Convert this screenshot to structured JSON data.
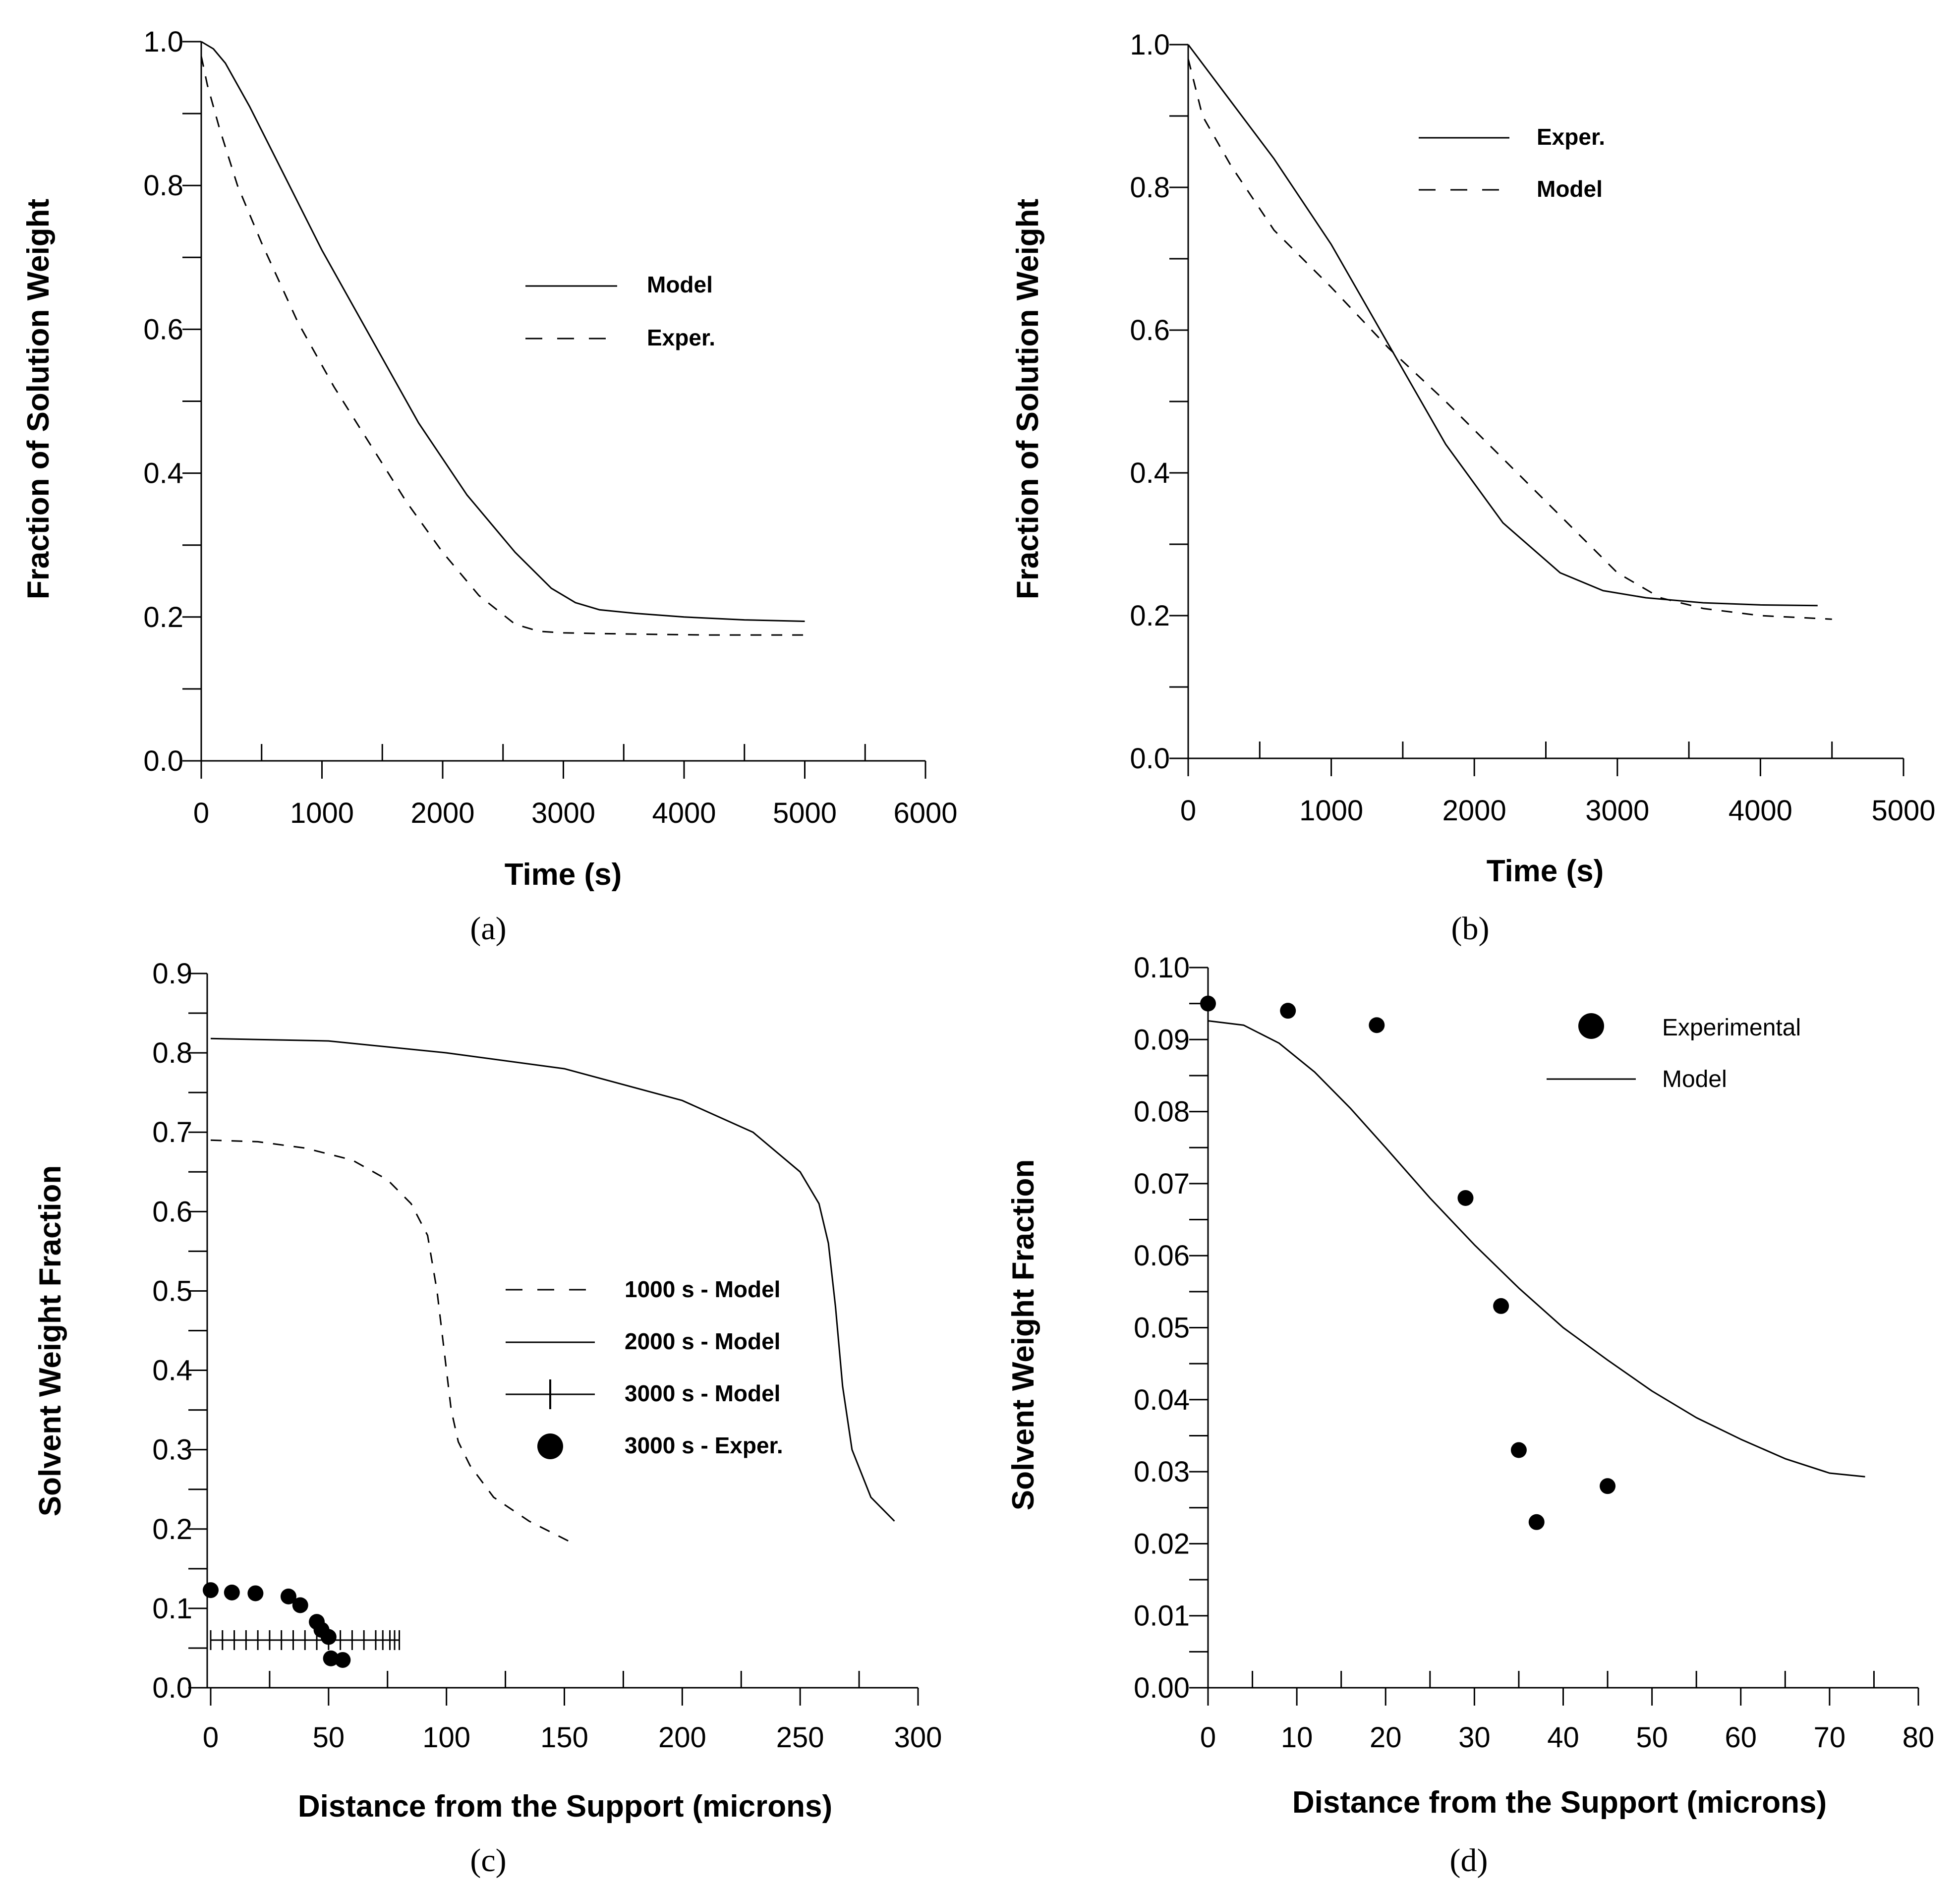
{
  "chart_data": [
    {
      "id": "a",
      "type": "line",
      "panel_label": "(a)",
      "xlabel": "Time (s)",
      "ylabel": "Fraction of Solution Weight",
      "xlim": [
        0,
        6000
      ],
      "ylim": [
        0,
        1
      ],
      "xticks": [
        "0",
        "1000",
        "2000",
        "3000",
        "4000",
        "5000",
        "6000"
      ],
      "yticks": [
        "0.0",
        "0.2",
        "0.4",
        "0.6",
        "0.8",
        "1.0"
      ],
      "legend": [
        {
          "label": "Model",
          "style": "solid"
        },
        {
          "label": "Exper.",
          "style": "dashed"
        }
      ],
      "series": [
        {
          "name": "Model",
          "style": "solid",
          "x": [
            0,
            100,
            200,
            400,
            700,
            1000,
            1400,
            1800,
            2200,
            2600,
            2900,
            3100,
            3300,
            3600,
            4000,
            4500,
            5000
          ],
          "y": [
            1.0,
            0.99,
            0.97,
            0.91,
            0.81,
            0.71,
            0.59,
            0.47,
            0.37,
            0.29,
            0.24,
            0.22,
            0.21,
            0.205,
            0.2,
            0.196,
            0.194
          ]
        },
        {
          "name": "Exper.",
          "style": "dashed",
          "x": [
            0,
            50,
            150,
            300,
            500,
            800,
            1100,
            1400,
            1700,
            2000,
            2300,
            2600,
            2800,
            3000,
            3300,
            3700,
            4200,
            5000
          ],
          "y": [
            0.98,
            0.94,
            0.88,
            0.8,
            0.72,
            0.61,
            0.52,
            0.44,
            0.36,
            0.29,
            0.23,
            0.19,
            0.18,
            0.178,
            0.177,
            0.176,
            0.175,
            0.175
          ]
        }
      ]
    },
    {
      "id": "b",
      "type": "line",
      "panel_label": "(b)",
      "xlabel": "Time (s)",
      "ylabel": "Fraction of Solution Weight",
      "xlim": [
        0,
        5000
      ],
      "ylim": [
        0,
        1
      ],
      "xticks": [
        "0",
        "1000",
        "2000",
        "3000",
        "4000",
        "5000"
      ],
      "yticks": [
        "0.0",
        "0.2",
        "0.4",
        "0.6",
        "0.8",
        "1.0"
      ],
      "legend": [
        {
          "label": "Exper.",
          "style": "solid"
        },
        {
          "label": "Model",
          "style": "dashed"
        }
      ],
      "series": [
        {
          "name": "Exper.",
          "style": "solid",
          "x": [
            0,
            300,
            600,
            1000,
            1400,
            1800,
            2200,
            2600,
            2900,
            3200,
            3600,
            4000,
            4400
          ],
          "y": [
            1.0,
            0.92,
            0.84,
            0.72,
            0.58,
            0.44,
            0.33,
            0.26,
            0.235,
            0.225,
            0.218,
            0.215,
            0.214
          ]
        },
        {
          "name": "Model",
          "style": "dashed",
          "x": [
            0,
            100,
            300,
            600,
            1000,
            1400,
            1800,
            2200,
            2600,
            3000,
            3300,
            3600,
            4000,
            4500
          ],
          "y": [
            0.98,
            0.9,
            0.83,
            0.74,
            0.66,
            0.575,
            0.5,
            0.42,
            0.34,
            0.26,
            0.225,
            0.21,
            0.2,
            0.195
          ]
        }
      ]
    },
    {
      "id": "c",
      "type": "line",
      "panel_label": "(c)",
      "xlabel": "Distance from the Support (microns)",
      "ylabel": "Solvent Weight Fraction",
      "xlim": [
        0,
        300
      ],
      "ylim": [
        0,
        0.9
      ],
      "xticks": [
        "0",
        "50",
        "100",
        "150",
        "200",
        "250",
        "300"
      ],
      "yticks": [
        "0.0",
        "0.1",
        "0.2",
        "0.3",
        "0.4",
        "0.5",
        "0.6",
        "0.7",
        "0.8",
        "0.9"
      ],
      "legend": [
        {
          "label": "1000 s - Model",
          "style": "dashed"
        },
        {
          "label": "2000 s - Model",
          "style": "solid"
        },
        {
          "label": "3000 s - Model",
          "style": "plus"
        },
        {
          "label": "3000 s - Exper.",
          "style": "dot"
        }
      ],
      "series": [
        {
          "name": "1000 s - Model",
          "style": "dashed",
          "x": [
            0,
            20,
            40,
            60,
            75,
            85,
            92,
            96,
            98,
            100,
            102,
            105,
            110,
            120,
            135,
            155
          ],
          "y": [
            0.69,
            0.688,
            0.68,
            0.665,
            0.64,
            0.61,
            0.57,
            0.5,
            0.45,
            0.4,
            0.35,
            0.31,
            0.28,
            0.24,
            0.21,
            0.18
          ]
        },
        {
          "name": "2000 s - Model",
          "style": "solid",
          "x": [
            0,
            50,
            100,
            150,
            200,
            230,
            250,
            258,
            262,
            265,
            268,
            272,
            280,
            290
          ],
          "y": [
            0.818,
            0.815,
            0.8,
            0.78,
            0.74,
            0.7,
            0.65,
            0.61,
            0.56,
            0.48,
            0.38,
            0.3,
            0.24,
            0.21
          ]
        },
        {
          "name": "3000 s - Model",
          "style": "plus",
          "x": [
            0,
            5,
            10,
            15,
            20,
            25,
            30,
            35,
            40,
            45,
            50,
            55,
            60,
            65,
            70,
            73,
            76,
            78,
            80
          ],
          "y": [
            0.06,
            0.06,
            0.06,
            0.06,
            0.06,
            0.06,
            0.06,
            0.06,
            0.06,
            0.06,
            0.06,
            0.06,
            0.06,
            0.06,
            0.06,
            0.06,
            0.06,
            0.06,
            0.06
          ]
        },
        {
          "name": "3000 s - Exper.",
          "style": "dot",
          "x": [
            0,
            9,
            19,
            33,
            38,
            45,
            47,
            50,
            51,
            56
          ],
          "y": [
            0.123,
            0.12,
            0.119,
            0.115,
            0.104,
            0.083,
            0.073,
            0.064,
            0.037,
            0.035
          ]
        }
      ]
    },
    {
      "id": "d",
      "type": "line",
      "panel_label": "(d)",
      "xlabel": "Distance from the Support (microns)",
      "ylabel": "Solvent Weight Fraction",
      "xlim": [
        0,
        80
      ],
      "ylim": [
        0,
        0.1
      ],
      "xticks": [
        "0",
        "10",
        "20",
        "30",
        "40",
        "50",
        "60",
        "70",
        "80"
      ],
      "yticks": [
        "0.00",
        "0.01",
        "0.02",
        "0.03",
        "0.04",
        "0.05",
        "0.06",
        "0.07",
        "0.08",
        "0.09",
        "0.10"
      ],
      "legend": [
        {
          "label": "Experimental",
          "style": "dot"
        },
        {
          "label": "Model",
          "style": "solid"
        }
      ],
      "series": [
        {
          "name": "Experimental",
          "style": "dot",
          "x": [
            0,
            9,
            19,
            29,
            33,
            35,
            37,
            45
          ],
          "y": [
            0.095,
            0.094,
            0.092,
            0.068,
            0.053,
            0.033,
            0.023,
            0.028
          ]
        },
        {
          "name": "Model",
          "style": "solid",
          "x": [
            0,
            4,
            8,
            12,
            16,
            20,
            25,
            30,
            35,
            40,
            45,
            50,
            55,
            60,
            65,
            70,
            74
          ],
          "y": [
            0.0926,
            0.092,
            0.0895,
            0.0855,
            0.0805,
            0.075,
            0.068,
            0.0615,
            0.0555,
            0.05,
            0.0455,
            0.0412,
            0.0375,
            0.0345,
            0.0318,
            0.0298,
            0.0293
          ]
        }
      ]
    }
  ]
}
